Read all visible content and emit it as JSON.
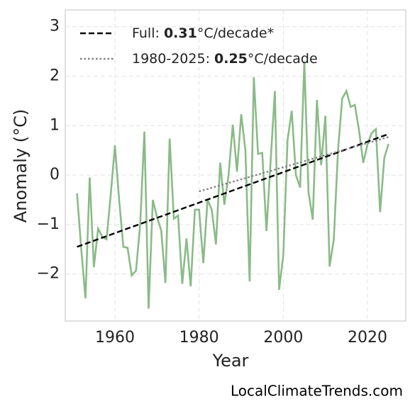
{
  "chart_data": {
    "type": "line",
    "x_label": "Year",
    "y_label": "Anomaly (°C)",
    "source": "LocalClimateTrends.com",
    "xlim": [
      1948.2,
      2029.1
    ],
    "ylim": [
      -2.95,
      3.34
    ],
    "xticks": [
      1960,
      1980,
      2000,
      2020
    ],
    "yticks": [
      {
        "value": -2,
        "label": "−2"
      },
      {
        "value": -1,
        "label": "−1"
      },
      0,
      1,
      2,
      3
    ],
    "grid": true,
    "legend": "upper left",
    "series": [
      {
        "color": "#8abb87",
        "style": "solid",
        "x": [
          1951,
          1952,
          1953,
          1954,
          1955,
          1956,
          1957,
          1958,
          1959,
          1960,
          1961,
          1962,
          1963,
          1964,
          1965,
          1966,
          1967,
          1968,
          1969,
          1970,
          1971,
          1972,
          1973,
          1974,
          1975,
          1976,
          1977,
          1978,
          1979,
          1980,
          1981,
          1982,
          1983,
          1984,
          1985,
          1986,
          1987,
          1988,
          1989,
          1990,
          1991,
          1992,
          1993,
          1994,
          1995,
          1996,
          1997,
          1998,
          1999,
          2000,
          2001,
          2002,
          2003,
          2004,
          2005,
          2006,
          2007,
          2008,
          2009,
          2010,
          2011,
          2012,
          2013,
          2014,
          2015,
          2016,
          2017,
          2018,
          2019,
          2020,
          2021,
          2022,
          2023,
          2024,
          2025
        ],
        "values": [
          -0.37,
          -1.5,
          -2.49,
          -0.05,
          -1.86,
          -1.08,
          -1.25,
          -1.3,
          -0.4,
          0.6,
          -0.5,
          -1.45,
          -1.47,
          -2.03,
          -1.93,
          -1.0,
          0.88,
          -2.7,
          -0.5,
          -0.85,
          -1.12,
          -2.18,
          0.74,
          -0.88,
          -0.82,
          -2.2,
          -1.28,
          -2.25,
          -0.7,
          -0.7,
          -1.78,
          -0.5,
          -0.7,
          -1.4,
          0.25,
          -0.6,
          0.0,
          1.02,
          0.07,
          1.23,
          0.5,
          -2.15,
          1.98,
          0.43,
          0.45,
          -1.13,
          0.3,
          1.7,
          -2.32,
          -1.62,
          0.7,
          1.3,
          0.0,
          -0.25,
          2.3,
          -0.35,
          -0.9,
          1.52,
          0.2,
          1.2,
          -1.85,
          -1.3,
          0.5,
          1.55,
          1.7,
          1.38,
          1.42,
          0.9,
          0.25,
          0.62,
          0.85,
          0.93,
          -0.75,
          0.35,
          0.63
        ]
      },
      {
        "name": [
          "Full: ",
          "0.31",
          "°C/decade*"
        ],
        "color": "#000000",
        "style": "dashed",
        "x": [
          1951,
          2025
        ],
        "values": [
          -1.45,
          0.83
        ]
      },
      {
        "name": [
          "1980-2025: ",
          "0.25",
          "°C/decade"
        ],
        "color": "#808080",
        "style": "dotted",
        "x": [
          1980,
          2025
        ],
        "values": [
          -0.33,
          0.77
        ]
      }
    ]
  }
}
